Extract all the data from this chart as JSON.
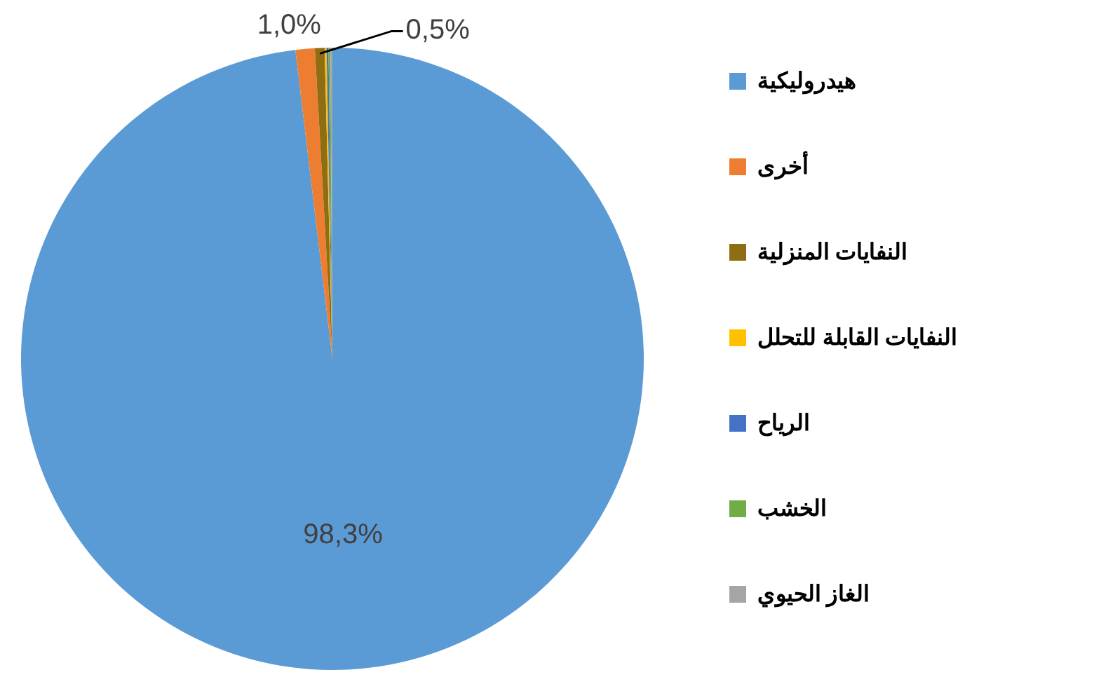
{
  "chart_data": {
    "type": "pie",
    "categories": [
      "هيدروليكية",
      "أخرى",
      "النفايات المنزلية",
      "النفايات القابلة للتحلل",
      "الرياح",
      "الخشب",
      "الغاز الحيوي"
    ],
    "values": [
      98.3,
      1.0,
      0.5,
      0.1,
      0.1,
      0.1,
      0.1
    ],
    "value_labels": [
      "98,3%",
      "1,0%",
      "0,5%",
      null,
      null,
      null,
      null
    ],
    "colors": [
      "#5b9bd5",
      "#ed7d31",
      "#8f6d12",
      "#ffc000",
      "#4472c4",
      "#70ad47",
      "#a5a5a5"
    ],
    "legend": "right"
  }
}
